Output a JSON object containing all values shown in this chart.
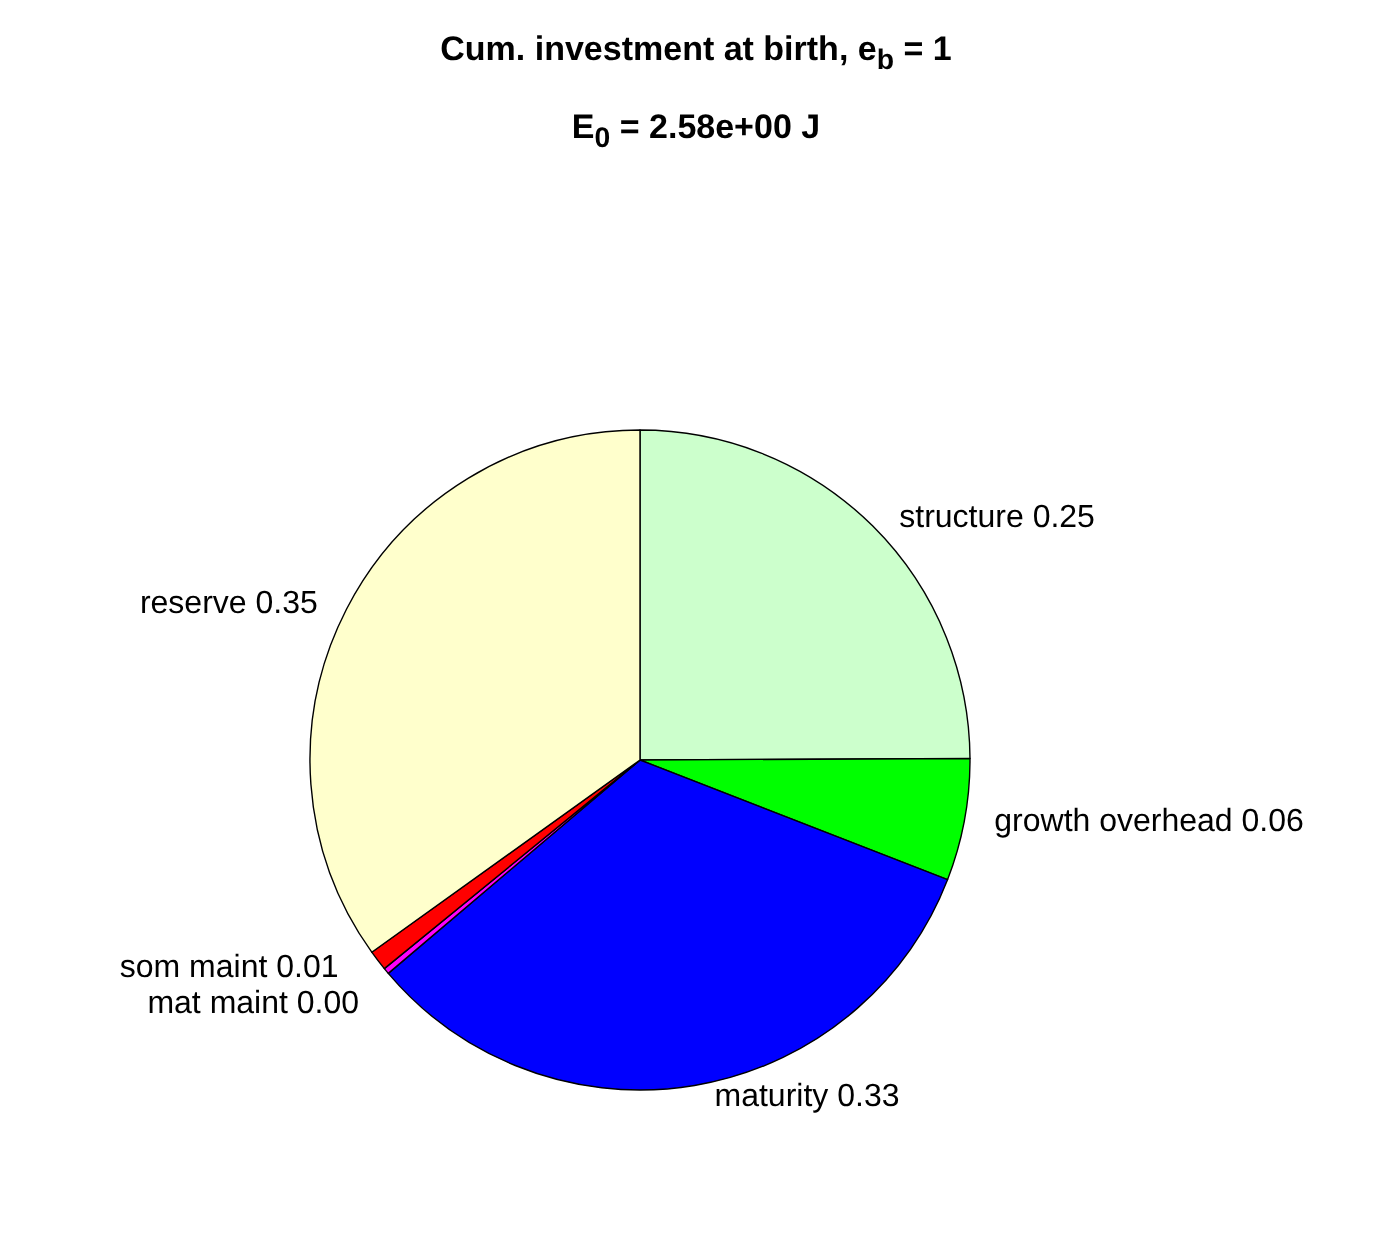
{
  "chart_data": {
    "type": "pie",
    "title": "Cum. investment at birth, e$_{b}$ = 1",
    "subtitle": "E$_{0}$ = 2.58e+00 J",
    "categories": [
      "structure",
      "growth overhead",
      "maturity",
      "mat maint",
      "som maint",
      "reserve"
    ],
    "values": [
      0.25,
      0.06,
      0.33,
      0.003,
      0.01,
      0.35
    ],
    "value_labels": [
      "0.25",
      "0.06",
      "0.33",
      "0.00",
      "0.01",
      "0.35"
    ],
    "colors": [
      "#ccffcc",
      "#00ff00",
      "#0000ff",
      "#ff00ff",
      "#ff0000",
      "#ffffcc"
    ],
    "legend": false
  }
}
